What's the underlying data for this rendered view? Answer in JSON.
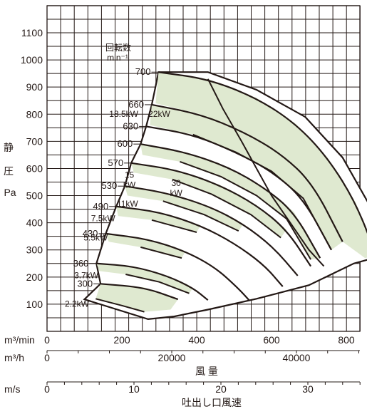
{
  "chart_data": {
    "type": "area",
    "title": "",
    "xlabel": "風 量",
    "ylabel": "静 圧 Pa",
    "ylabel_parts": [
      "静",
      "圧",
      "Pa"
    ],
    "grid": true,
    "xlim": [
      0,
      1000
    ],
    "ylim": [
      0,
      1200
    ],
    "y_ticks": [
      100,
      200,
      300,
      400,
      500,
      600,
      700,
      800,
      900,
      1000,
      1100
    ],
    "x_axes": [
      {
        "unit": "m³/min",
        "ticks": [
          "0",
          "200",
          "400",
          "600",
          "800"
        ],
        "tick_values": [
          0,
          200,
          400,
          600,
          800
        ]
      },
      {
        "unit": "m³/h",
        "ticks": [
          "0",
          "20000",
          "40000"
        ],
        "tick_values": [
          0,
          20000,
          40000
        ],
        "label": "風 量"
      },
      {
        "unit": "m/s",
        "ticks": [
          "0",
          "10",
          "20",
          "30"
        ],
        "tick_values": [
          0,
          10,
          20,
          30
        ],
        "label": "吐出し口風速"
      }
    ],
    "speed_title": [
      "回転数",
      "min⁻¹"
    ],
    "speed_curves": [
      {
        "rpm": "300",
        "points": [
          [
            143,
            175
          ],
          [
            260,
            162
          ],
          [
            350,
            118
          ]
        ]
      },
      {
        "rpm": "360",
        "points": [
          [
            132,
            250
          ],
          [
            230,
            240
          ],
          [
            320,
            205
          ],
          [
            390,
            160
          ],
          [
            430,
            115
          ]
        ]
      },
      {
        "rpm": "430",
        "points": [
          [
            157,
            360
          ],
          [
            270,
            340
          ],
          [
            370,
            295
          ],
          [
            450,
            235
          ],
          [
            510,
            160
          ],
          [
            540,
            115
          ]
        ]
      },
      {
        "rpm": "490",
        "points": [
          [
            185,
            460
          ],
          [
            300,
            440
          ],
          [
            410,
            390
          ],
          [
            500,
            325
          ],
          [
            580,
            245
          ],
          [
            630,
            165
          ]
        ]
      },
      {
        "rpm": "530",
        "points": [
          [
            208,
            535
          ],
          [
            320,
            510
          ],
          [
            435,
            460
          ],
          [
            525,
            395
          ],
          [
            605,
            310
          ],
          [
            670,
            205
          ]
        ]
      },
      {
        "rpm": "570",
        "points": [
          [
            225,
            620
          ],
          [
            345,
            595
          ],
          [
            460,
            540
          ],
          [
            560,
            465
          ],
          [
            640,
            375
          ],
          [
            705,
            240
          ]
        ]
      },
      {
        "rpm": "600",
        "points": [
          [
            250,
            690
          ],
          [
            370,
            660
          ],
          [
            485,
            605
          ],
          [
            580,
            530
          ],
          [
            660,
            440
          ],
          [
            730,
            270
          ]
        ]
      },
      {
        "rpm": "630",
        "points": [
          [
            265,
            755
          ],
          [
            390,
            725
          ],
          [
            505,
            660
          ],
          [
            600,
            590
          ],
          [
            685,
            490
          ],
          [
            760,
            300
          ]
        ]
      },
      {
        "rpm": "660",
        "points": [
          [
            280,
            835
          ],
          [
            410,
            800
          ],
          [
            525,
            735
          ],
          [
            625,
            655
          ],
          [
            710,
            545
          ],
          [
            790,
            330
          ]
        ]
      },
      {
        "rpm": "700",
        "points": [
          [
            298,
            955
          ],
          [
            430,
            930
          ],
          [
            560,
            860
          ],
          [
            665,
            765
          ],
          [
            750,
            640
          ],
          [
            825,
            475
          ],
          [
            880,
            280
          ]
        ]
      }
    ],
    "power_labels": [
      "2.2kW",
      "3.7kW",
      "5.5kW",
      "7.5kW",
      "11kW",
      "15 kW",
      "18.5kW",
      "22kW",
      "30 kW"
    ],
    "power_bands": [
      {
        "label": "2.2kW",
        "polygon": [
          [
            143,
            175
          ],
          [
            260,
            162
          ],
          [
            350,
            118
          ],
          [
            330,
            80
          ],
          [
            260,
            72
          ],
          [
            200,
            95
          ],
          [
            130,
            120
          ]
        ]
      },
      {
        "label": "3.7kW",
        "polygon": [
          [
            132,
            250
          ],
          [
            230,
            240
          ],
          [
            320,
            205
          ],
          [
            390,
            160
          ],
          [
            380,
            140
          ],
          [
            300,
            182
          ],
          [
            210,
            210
          ],
          [
            140,
            222
          ]
        ]
      },
      {
        "label": "5.5kW",
        "polygon": [
          [
            157,
            360
          ],
          [
            270,
            340
          ],
          [
            370,
            295
          ],
          [
            360,
            270
          ],
          [
            250,
            310
          ],
          [
            165,
            330
          ]
        ]
      },
      {
        "label": "7.5kW",
        "polygon": [
          [
            185,
            460
          ],
          [
            300,
            440
          ],
          [
            410,
            390
          ],
          [
            400,
            365
          ],
          [
            280,
            410
          ],
          [
            190,
            425
          ]
        ]
      },
      {
        "label": "11kW",
        "polygon": [
          [
            208,
            535
          ],
          [
            320,
            510
          ],
          [
            435,
            460
          ],
          [
            525,
            395
          ],
          [
            512,
            370
          ],
          [
            420,
            430
          ],
          [
            310,
            480
          ],
          [
            215,
            500
          ]
        ]
      },
      {
        "label": "15 kW",
        "polygon": [
          [
            225,
            620
          ],
          [
            345,
            595
          ],
          [
            460,
            540
          ],
          [
            560,
            465
          ],
          [
            640,
            375
          ],
          [
            625,
            345
          ],
          [
            545,
            430
          ],
          [
            440,
            505
          ],
          [
            335,
            560
          ],
          [
            232,
            585
          ]
        ]
      },
      {
        "label": "18.5kW",
        "polygon": [
          [
            250,
            690
          ],
          [
            370,
            660
          ],
          [
            485,
            605
          ],
          [
            580,
            530
          ],
          [
            660,
            440
          ],
          [
            730,
            270
          ],
          [
            705,
            265
          ],
          [
            640,
            415
          ],
          [
            560,
            500
          ],
          [
            465,
            570
          ],
          [
            355,
            625
          ],
          [
            255,
            650
          ]
        ]
      },
      {
        "label": "22kW",
        "polygon": [
          [
            280,
            835
          ],
          [
            410,
            800
          ],
          [
            525,
            735
          ],
          [
            625,
            655
          ],
          [
            710,
            545
          ],
          [
            790,
            330
          ],
          [
            760,
            300
          ],
          [
            685,
            490
          ],
          [
            600,
            590
          ],
          [
            505,
            660
          ],
          [
            390,
            725
          ],
          [
            275,
            760
          ]
        ]
      },
      {
        "label": "30 kW",
        "polygon": [
          [
            298,
            955
          ],
          [
            430,
            930
          ],
          [
            560,
            860
          ],
          [
            665,
            765
          ],
          [
            750,
            640
          ],
          [
            825,
            475
          ],
          [
            880,
            280
          ],
          [
            850,
            270
          ],
          [
            790,
            330
          ],
          [
            710,
            545
          ],
          [
            625,
            655
          ],
          [
            525,
            735
          ],
          [
            410,
            800
          ],
          [
            290,
            840
          ]
        ]
      }
    ],
    "power_lines": [
      [
        [
          130,
          120
        ],
        [
          200,
          95
        ],
        [
          260,
          72
        ]
      ],
      [
        [
          210,
          210
        ],
        [
          300,
          182
        ],
        [
          380,
          140
        ]
      ],
      [
        [
          250,
          310
        ],
        [
          360,
          270
        ]
      ],
      [
        [
          280,
          410
        ],
        [
          400,
          365
        ]
      ],
      [
        [
          310,
          480
        ],
        [
          420,
          430
        ],
        [
          512,
          370
        ]
      ],
      [
        [
          335,
          560
        ],
        [
          440,
          505
        ],
        [
          545,
          430
        ],
        [
          625,
          345
        ]
      ],
      [
        [
          355,
          625
        ],
        [
          465,
          570
        ],
        [
          560,
          500
        ],
        [
          640,
          415
        ],
        [
          705,
          265
        ]
      ],
      [
        [
          390,
          725
        ],
        [
          505,
          660
        ],
        [
          600,
          590
        ],
        [
          685,
          490
        ],
        [
          760,
          300
        ]
      ],
      [
        [
          430,
          930
        ],
        [
          470,
          820
        ],
        [
          520,
          700
        ],
        [
          560,
          600
        ],
        [
          600,
          500
        ],
        [
          650,
          400
        ],
        [
          700,
          300
        ],
        [
          740,
          240
        ]
      ]
    ],
    "envelope": [
      [
        100,
        118
      ],
      [
        143,
        175
      ],
      [
        132,
        250
      ],
      [
        157,
        360
      ],
      [
        185,
        460
      ],
      [
        208,
        535
      ],
      [
        225,
        620
      ],
      [
        250,
        690
      ],
      [
        265,
        755
      ],
      [
        280,
        835
      ],
      [
        298,
        955
      ],
      [
        430,
        955
      ],
      [
        560,
        890
      ],
      [
        690,
        790
      ],
      [
        790,
        640
      ],
      [
        860,
        470
      ],
      [
        900,
        280
      ],
      [
        820,
        250
      ],
      [
        700,
        170
      ],
      [
        560,
        120
      ],
      [
        430,
        80
      ],
      [
        340,
        55
      ],
      [
        270,
        45
      ]
    ],
    "colors": {
      "band_fill": "#dfe9d0",
      "line": "#231815",
      "grid": "#231815"
    }
  }
}
